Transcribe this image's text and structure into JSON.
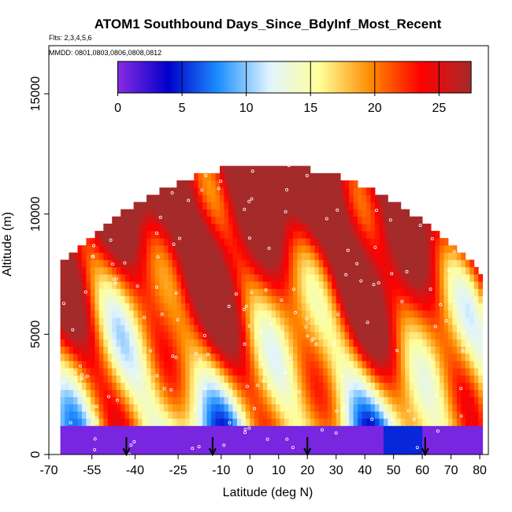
{
  "chart_data": {
    "type": "heatmap",
    "title": "ATOM1 Southbound Days_Since_BdyInf_Most_Recent",
    "subtitle": "Flts: 2,3,4,5,6",
    "annotation": "MMDD: 0801,0803,0806,0808,0812",
    "xlabel": "Latitude (deg N)",
    "ylabel": "Altitude (m)",
    "xlim": [
      -70,
      83
    ],
    "ylim": [
      0,
      17000
    ],
    "x_ticks": [
      "-70",
      "-55",
      "-40",
      "-25",
      "-10",
      "0",
      "10",
      "20",
      "30",
      "40",
      "50",
      "60",
      "70",
      "80"
    ],
    "y_ticks": [
      "0",
      "5000",
      "10000",
      "15000"
    ],
    "colorbar": {
      "min": 0,
      "max": 27.5,
      "ticks": [
        "0",
        "5",
        "10",
        "15",
        "20",
        "25"
      ],
      "colors": [
        "#8a2be2",
        "#0000cc",
        "#1e90ff",
        "#e0f4ff",
        "#ffff99",
        "#ff8c00",
        "#ff0000",
        "#a52a2a"
      ]
    },
    "arrow_latitudes": [
      -43,
      -13,
      20,
      61
    ],
    "grid": false,
    "legend": "colorbar-top-inside-plot",
    "colors": {
      "marker": "#ffffff",
      "arrow": "#000000"
    }
  }
}
